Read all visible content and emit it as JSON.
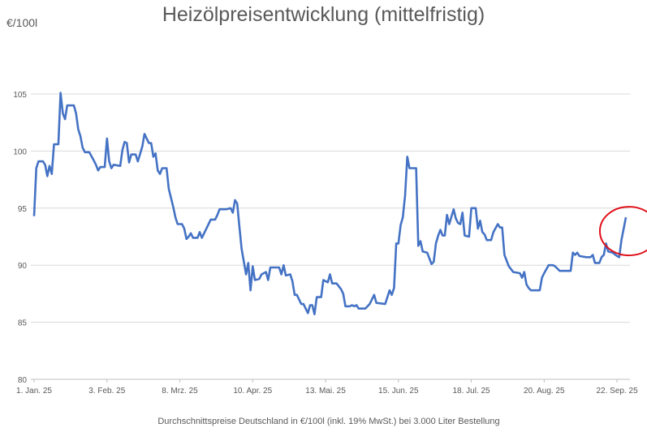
{
  "chart_data": {
    "type": "line",
    "title": "Heizölpreisentwicklung (mittelfristig)",
    "ylabel": "€/100l",
    "xlabel": "Durchschnittspreise Deutschland in €/100l (inkl. 19% MwSt.) bei 3.000 Liter Bestellung",
    "ylim": [
      80,
      105
    ],
    "yticks": [
      80,
      85,
      90,
      95,
      100,
      105
    ],
    "grid": "horizontal",
    "legend": "none",
    "xticks": [
      {
        "date": "2025-01-01",
        "label": "1. Jan. 25"
      },
      {
        "date": "2025-02-03",
        "label": "3. Feb. 25"
      },
      {
        "date": "2025-03-08",
        "label": "8. Mrz. 25"
      },
      {
        "date": "2025-04-10",
        "label": "10. Apr. 25"
      },
      {
        "date": "2025-05-13",
        "label": "13. Mai. 25"
      },
      {
        "date": "2025-06-15",
        "label": "15. Jun. 25"
      },
      {
        "date": "2025-07-18",
        "label": "18. Jul. 25"
      },
      {
        "date": "2025-08-20",
        "label": "20. Aug. 25"
      },
      {
        "date": "2025-09-22",
        "label": "22. Sep. 25"
      }
    ],
    "line_color": "#4472C4",
    "annotation": {
      "type": "ellipse",
      "color": "#E0101A",
      "target_date": "2025-09-26"
    },
    "series": [
      {
        "points": [
          [
            "2025-01-01",
            94.3
          ],
          [
            "2025-01-02",
            98.5
          ],
          [
            "2025-01-03",
            99.1
          ],
          [
            "2025-01-05",
            99.1
          ],
          [
            "2025-01-06",
            98.8
          ],
          [
            "2025-01-07",
            97.8
          ],
          [
            "2025-01-08",
            98.7
          ],
          [
            "2025-01-09",
            98.0
          ],
          [
            "2025-01-10",
            100.6
          ],
          [
            "2025-01-12",
            100.6
          ],
          [
            "2025-01-13",
            105.1
          ],
          [
            "2025-01-14",
            103.3
          ],
          [
            "2025-01-15",
            102.8
          ],
          [
            "2025-01-16",
            104.0
          ],
          [
            "2025-01-19",
            104.0
          ],
          [
            "2025-01-20",
            103.3
          ],
          [
            "2025-01-21",
            101.9
          ],
          [
            "2025-01-22",
            101.3
          ],
          [
            "2025-01-23",
            100.3
          ],
          [
            "2025-01-24",
            99.9
          ],
          [
            "2025-01-26",
            99.9
          ],
          [
            "2025-01-28",
            99.2
          ],
          [
            "2025-01-29",
            98.8
          ],
          [
            "2025-01-30",
            98.3
          ],
          [
            "2025-01-31",
            98.6
          ],
          [
            "2025-02-02",
            98.6
          ],
          [
            "2025-02-03",
            101.1
          ],
          [
            "2025-02-04",
            99.1
          ],
          [
            "2025-02-05",
            98.5
          ],
          [
            "2025-02-06",
            98.8
          ],
          [
            "2025-02-09",
            98.7
          ],
          [
            "2025-02-10",
            100.1
          ],
          [
            "2025-02-11",
            100.8
          ],
          [
            "2025-02-12",
            100.7
          ],
          [
            "2025-02-13",
            99.0
          ],
          [
            "2025-02-14",
            99.7
          ],
          [
            "2025-02-16",
            99.7
          ],
          [
            "2025-02-17",
            99.1
          ],
          [
            "2025-02-19",
            100.4
          ],
          [
            "2025-02-20",
            101.5
          ],
          [
            "2025-02-22",
            100.7
          ],
          [
            "2025-02-23",
            100.7
          ],
          [
            "2025-02-24",
            99.5
          ],
          [
            "2025-02-25",
            99.8
          ],
          [
            "2025-02-26",
            98.3
          ],
          [
            "2025-02-27",
            98.0
          ],
          [
            "2025-02-28",
            98.5
          ],
          [
            "2025-03-02",
            98.5
          ],
          [
            "2025-03-03",
            96.7
          ],
          [
            "2025-03-05",
            95.1
          ],
          [
            "2025-03-06",
            94.2
          ],
          [
            "2025-03-07",
            93.6
          ],
          [
            "2025-03-09",
            93.6
          ],
          [
            "2025-03-10",
            93.2
          ],
          [
            "2025-03-11",
            92.3
          ],
          [
            "2025-03-12",
            92.5
          ],
          [
            "2025-03-13",
            92.8
          ],
          [
            "2025-03-14",
            92.4
          ],
          [
            "2025-03-16",
            92.4
          ],
          [
            "2025-03-17",
            92.9
          ],
          [
            "2025-03-18",
            92.4
          ],
          [
            "2025-03-21",
            93.6
          ],
          [
            "2025-03-22",
            94.0
          ],
          [
            "2025-03-24",
            94.0
          ],
          [
            "2025-03-25",
            94.4
          ],
          [
            "2025-03-26",
            94.9
          ],
          [
            "2025-03-29",
            94.9
          ],
          [
            "2025-03-31",
            95.0
          ],
          [
            "2025-04-01",
            94.6
          ],
          [
            "2025-04-02",
            95.7
          ],
          [
            "2025-04-03",
            95.4
          ],
          [
            "2025-04-04",
            93.3
          ],
          [
            "2025-04-05",
            91.4
          ],
          [
            "2025-04-07",
            89.2
          ],
          [
            "2025-04-08",
            90.2
          ],
          [
            "2025-04-09",
            87.8
          ],
          [
            "2025-04-10",
            89.9
          ],
          [
            "2025-04-11",
            88.7
          ],
          [
            "2025-04-13",
            88.8
          ],
          [
            "2025-04-14",
            89.2
          ],
          [
            "2025-04-16",
            89.4
          ],
          [
            "2025-04-17",
            88.7
          ],
          [
            "2025-04-18",
            89.8
          ],
          [
            "2025-04-22",
            89.8
          ],
          [
            "2025-04-23",
            89.2
          ],
          [
            "2025-04-24",
            90.0
          ],
          [
            "2025-04-25",
            89.1
          ],
          [
            "2025-04-27",
            89.2
          ],
          [
            "2025-04-28",
            88.6
          ],
          [
            "2025-04-29",
            87.4
          ],
          [
            "2025-04-30",
            87.4
          ],
          [
            "2025-05-02",
            86.6
          ],
          [
            "2025-05-03",
            86.6
          ],
          [
            "2025-05-05",
            85.8
          ],
          [
            "2025-05-06",
            86.5
          ],
          [
            "2025-05-07",
            86.5
          ],
          [
            "2025-05-08",
            85.7
          ],
          [
            "2025-05-09",
            87.2
          ],
          [
            "2025-05-11",
            87.2
          ],
          [
            "2025-05-12",
            88.7
          ],
          [
            "2025-05-14",
            88.5
          ],
          [
            "2025-05-15",
            89.2
          ],
          [
            "2025-05-16",
            88.4
          ],
          [
            "2025-05-18",
            88.4
          ],
          [
            "2025-05-20",
            87.9
          ],
          [
            "2025-05-21",
            87.5
          ],
          [
            "2025-05-22",
            86.4
          ],
          [
            "2025-05-24",
            86.4
          ],
          [
            "2025-05-25",
            86.5
          ],
          [
            "2025-05-26",
            86.4
          ],
          [
            "2025-05-27",
            86.5
          ],
          [
            "2025-05-28",
            86.2
          ],
          [
            "2025-05-31",
            86.2
          ],
          [
            "2025-06-02",
            86.6
          ],
          [
            "2025-06-04",
            87.4
          ],
          [
            "2025-06-05",
            86.7
          ],
          [
            "2025-06-09",
            86.6
          ],
          [
            "2025-06-11",
            87.8
          ],
          [
            "2025-06-12",
            87.4
          ],
          [
            "2025-06-13",
            88.0
          ],
          [
            "2025-06-14",
            91.9
          ],
          [
            "2025-06-15",
            91.9
          ],
          [
            "2025-06-16",
            93.5
          ],
          [
            "2025-06-17",
            94.2
          ],
          [
            "2025-06-18",
            96.1
          ],
          [
            "2025-06-19",
            99.5
          ],
          [
            "2025-06-20",
            98.5
          ],
          [
            "2025-06-23",
            98.5
          ],
          [
            "2025-06-24",
            91.7
          ],
          [
            "2025-06-25",
            92.1
          ],
          [
            "2025-06-26",
            91.2
          ],
          [
            "2025-06-28",
            91.1
          ],
          [
            "2025-06-30",
            90.1
          ],
          [
            "2025-07-01",
            90.3
          ],
          [
            "2025-07-02",
            91.9
          ],
          [
            "2025-07-03",
            92.6
          ],
          [
            "2025-07-04",
            93.1
          ],
          [
            "2025-07-05",
            92.6
          ],
          [
            "2025-07-06",
            92.6
          ],
          [
            "2025-07-07",
            94.4
          ],
          [
            "2025-07-08",
            93.6
          ],
          [
            "2025-07-10",
            94.9
          ],
          [
            "2025-07-11",
            94.1
          ],
          [
            "2025-07-12",
            93.7
          ],
          [
            "2025-07-13",
            93.6
          ],
          [
            "2025-07-14",
            94.6
          ],
          [
            "2025-07-15",
            92.6
          ],
          [
            "2025-07-17",
            92.5
          ],
          [
            "2025-07-18",
            95.0
          ],
          [
            "2025-07-20",
            95.0
          ],
          [
            "2025-07-21",
            93.2
          ],
          [
            "2025-07-22",
            93.9
          ],
          [
            "2025-07-23",
            92.9
          ],
          [
            "2025-07-24",
            92.7
          ],
          [
            "2025-07-25",
            92.2
          ],
          [
            "2025-07-27",
            92.2
          ],
          [
            "2025-07-28",
            92.9
          ],
          [
            "2025-07-30",
            93.6
          ],
          [
            "2025-07-31",
            93.3
          ],
          [
            "2025-08-01",
            93.3
          ],
          [
            "2025-08-02",
            90.9
          ],
          [
            "2025-08-04",
            89.9
          ],
          [
            "2025-08-06",
            89.4
          ],
          [
            "2025-08-09",
            89.3
          ],
          [
            "2025-08-10",
            88.9
          ],
          [
            "2025-08-11",
            89.4
          ],
          [
            "2025-08-12",
            88.3
          ],
          [
            "2025-08-13",
            88.0
          ],
          [
            "2025-08-14",
            87.8
          ],
          [
            "2025-08-18",
            87.8
          ],
          [
            "2025-08-19",
            88.9
          ],
          [
            "2025-08-20",
            89.3
          ],
          [
            "2025-08-22",
            90.0
          ],
          [
            "2025-08-24",
            90.0
          ],
          [
            "2025-08-25",
            89.9
          ],
          [
            "2025-08-26",
            89.7
          ],
          [
            "2025-08-27",
            89.5
          ],
          [
            "2025-09-01",
            89.5
          ],
          [
            "2025-09-02",
            91.1
          ],
          [
            "2025-09-03",
            90.9
          ],
          [
            "2025-09-04",
            91.1
          ],
          [
            "2025-09-05",
            90.8
          ],
          [
            "2025-09-08",
            90.7
          ],
          [
            "2025-09-10",
            90.7
          ],
          [
            "2025-09-11",
            90.9
          ],
          [
            "2025-09-12",
            90.2
          ],
          [
            "2025-09-14",
            90.2
          ],
          [
            "2025-09-15",
            90.7
          ],
          [
            "2025-09-16",
            90.9
          ],
          [
            "2025-09-17",
            91.9
          ],
          [
            "2025-09-18",
            91.2
          ],
          [
            "2025-09-20",
            91.1
          ],
          [
            "2025-09-22",
            90.8
          ],
          [
            "2025-09-23",
            90.7
          ],
          [
            "2025-09-24",
            92.2
          ],
          [
            "2025-09-26",
            94.2
          ]
        ]
      }
    ]
  }
}
